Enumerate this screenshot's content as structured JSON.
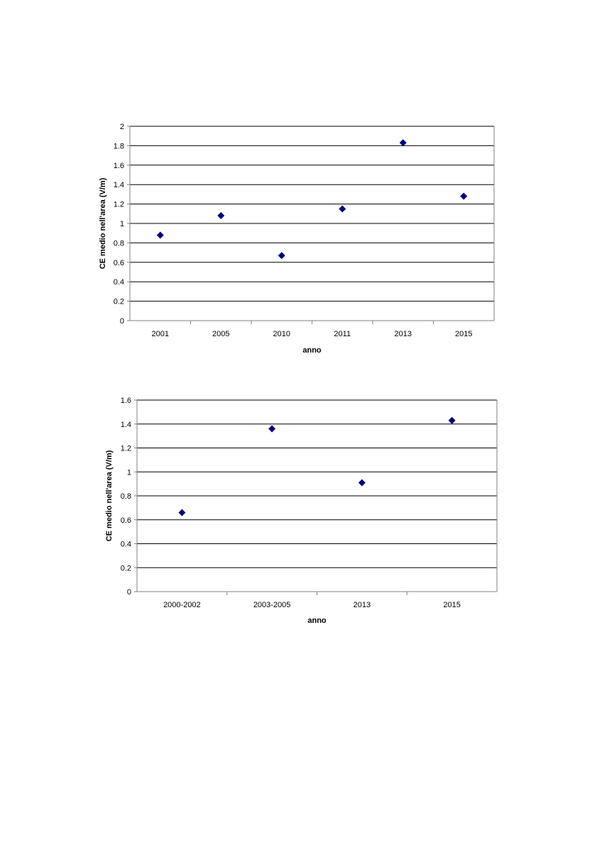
{
  "chart_data": [
    {
      "type": "scatter",
      "title": "",
      "xlabel": "anno",
      "ylabel": "CE medio nell'area (V/m)",
      "categories": [
        "2001",
        "2005",
        "2010",
        "2011",
        "2013",
        "2015"
      ],
      "series": [
        {
          "values": [
            0.88,
            1.08,
            0.67,
            1.15,
            1.83,
            1.28
          ]
        }
      ],
      "ylim": [
        0,
        2
      ],
      "yticks": [
        "0",
        "0.2",
        "0.4",
        "0.6",
        "0.8",
        "1",
        "1.2",
        "1.4",
        "1.6",
        "1.8",
        "2"
      ],
      "grid": "horizontal",
      "legend": "none",
      "marker": "diamond",
      "colors": {
        "marker": "#000080",
        "grid": "#000000",
        "axis": "#808080"
      }
    },
    {
      "type": "scatter",
      "title": "",
      "xlabel": "anno",
      "ylabel": "CE medio nell'area (V/m)",
      "categories": [
        "2000-2002",
        "2003-2005",
        "2013",
        "2015"
      ],
      "series": [
        {
          "values": [
            0.66,
            1.36,
            0.91,
            1.43
          ]
        }
      ],
      "ylim": [
        0,
        1.6
      ],
      "yticks": [
        "0",
        "0.2",
        "0.4",
        "0.6",
        "0.8",
        "1",
        "1.2",
        "1.4",
        "1.6"
      ],
      "grid": "horizontal",
      "legend": "none",
      "marker": "diamond",
      "colors": {
        "marker": "#000080",
        "grid": "#000000",
        "axis": "#808080"
      }
    }
  ]
}
